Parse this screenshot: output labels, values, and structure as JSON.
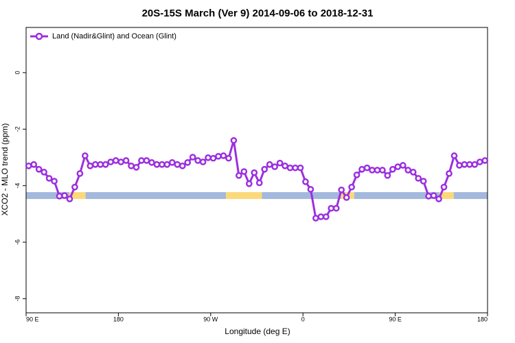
{
  "chart_data": {
    "type": "line",
    "title": "20S-15S March (Ver 9)   2014-09-06 to 2018-12-31",
    "xlabel": "Longitude (deg E)",
    "ylabel": "XCO2 - MLO trend (ppm)",
    "xlim": [
      90,
      540
    ],
    "xticks": [
      {
        "value": 90,
        "label": "90 E"
      },
      {
        "value": 180,
        "label": "180"
      },
      {
        "value": 270,
        "label": "90 W"
      },
      {
        "value": 360,
        "label": "0"
      },
      {
        "value": 450,
        "label": "90 E"
      },
      {
        "value": 540,
        "label": "180"
      }
    ],
    "ylim": [
      -8.5,
      1.6
    ],
    "yticks": [
      0,
      -2,
      -4,
      -6,
      -8
    ],
    "legend": "top-left",
    "x": [
      92.5,
      97.5,
      102.5,
      107.5,
      112.5,
      117.5,
      122.5,
      127.5,
      132.5,
      137.5,
      142.5,
      147.5,
      152.5,
      157.5,
      162.5,
      167.5,
      172.5,
      177.5,
      182.5,
      187.5,
      192.5,
      197.5,
      202.5,
      207.5,
      212.5,
      217.5,
      222.5,
      227.5,
      232.5,
      237.5,
      242.5,
      247.5,
      252.5,
      257.5,
      262.5,
      267.5,
      272.5,
      277.5,
      282.5,
      287.5,
      292.5,
      297.5,
      302.5,
      307.5,
      312.5,
      317.5,
      322.5,
      327.5,
      332.5,
      337.5,
      342.5,
      347.5,
      352.5,
      357.5,
      362.5,
      367.5,
      372.5,
      377.5,
      382.5,
      387.5,
      392.5,
      397.5,
      402.5,
      407.5,
      412.5,
      417.5,
      422.5,
      427.5,
      432.5,
      437.5,
      442.5,
      447.5,
      452.5,
      457.5,
      462.5,
      467.5,
      472.5,
      477.5,
      482.5,
      487.5,
      492.5,
      497.5,
      502.5,
      507.5,
      512.5,
      517.5,
      522.5,
      527.5,
      532.5,
      537.5
    ],
    "series": [
      {
        "name": "Land (Nadir&Glint) and Ocean (Glint)",
        "color": "#9b2fe0",
        "values": [
          -3.3,
          -3.25,
          -3.42,
          -3.52,
          -3.74,
          -3.84,
          -4.37,
          -4.35,
          -4.47,
          -4.05,
          -3.57,
          -2.94,
          -3.3,
          -3.25,
          -3.25,
          -3.25,
          -3.16,
          -3.11,
          -3.16,
          -3.11,
          -3.3,
          -3.35,
          -3.11,
          -3.11,
          -3.18,
          -3.25,
          -3.25,
          -3.25,
          -3.18,
          -3.25,
          -3.3,
          -3.18,
          -2.99,
          -3.11,
          -3.16,
          -3.01,
          -3.03,
          -2.96,
          -2.94,
          -3.03,
          -2.4,
          -3.64,
          -3.5,
          -3.93,
          -3.54,
          -3.9,
          -3.42,
          -3.25,
          -3.33,
          -3.2,
          -3.3,
          -3.37,
          -3.37,
          -3.37,
          -3.86,
          -4.13,
          -5.15,
          -5.1,
          -5.1,
          -4.8,
          -4.8,
          -4.15,
          -4.42,
          -4.05,
          -3.62,
          -3.42,
          -3.37,
          -3.45,
          -3.45,
          -3.45,
          -3.64,
          -3.42,
          -3.33,
          -3.28,
          -3.45,
          -3.52,
          -3.74,
          -3.84,
          -4.37,
          -4.35,
          -4.47,
          -4.05,
          -3.57,
          -2.94,
          -3.28,
          -3.25,
          -3.25,
          -3.25,
          -3.16,
          -3.11
        ]
      }
    ],
    "surface_band": {
      "value": -4.35,
      "segments": [
        {
          "from": 90,
          "to": 132,
          "color": "#a3b8dc"
        },
        {
          "from": 132,
          "to": 148,
          "color": "#fbd97a"
        },
        {
          "from": 148,
          "to": 285,
          "color": "#a3b8dc"
        },
        {
          "from": 285,
          "to": 320,
          "color": "#fbd97a"
        },
        {
          "from": 320,
          "to": 397,
          "color": "#a3b8dc"
        },
        {
          "from": 397,
          "to": 410,
          "color": "#fbd97a"
        },
        {
          "from": 410,
          "to": 493,
          "color": "#a3b8dc"
        },
        {
          "from": 493,
          "to": 507,
          "color": "#fbd97a"
        },
        {
          "from": 507,
          "to": 540,
          "color": "#a3b8dc"
        }
      ]
    }
  }
}
